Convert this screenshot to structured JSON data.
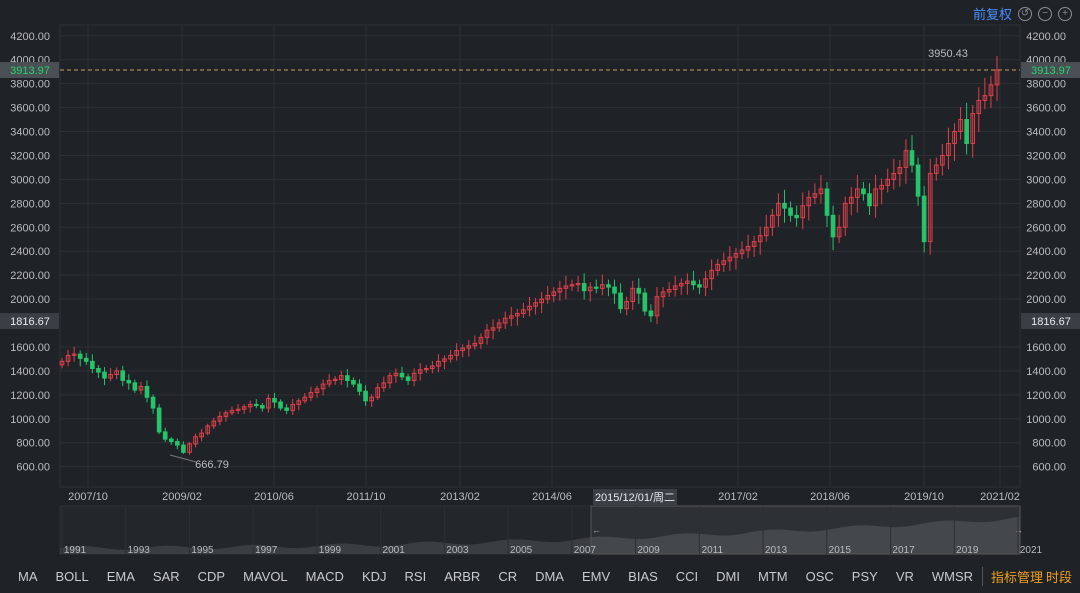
{
  "header": {
    "adjust_label": "前复权",
    "icons": [
      "reset-icon",
      "zoom-out-icon",
      "zoom-in-icon"
    ]
  },
  "colors": {
    "up": "#e0404a",
    "down": "#25c46a",
    "grid": "#2c3035",
    "text": "#b9bcc1",
    "price_line": "#c8a060",
    "tag_bg": "#3a3f45",
    "accent": "#f0a020"
  },
  "price_tag": {
    "current": "3913.97",
    "cursor": "1816.67",
    "cursor_date": "2015/12/01/周二"
  },
  "annotations": {
    "high": "3950.43",
    "low": "666.79"
  },
  "chart_data": {
    "type": "candlestick",
    "y_ticks": [
      "4200.00",
      "4000.00",
      "3800.00",
      "3600.00",
      "3400.00",
      "3200.00",
      "3000.00",
      "2800.00",
      "2600.00",
      "2400.00",
      "2200.00",
      "2000.00",
      "1600.00",
      "1400.00",
      "1200.00",
      "1000.00",
      "800.00",
      "600.00"
    ],
    "ylim": [
      430,
      4290
    ],
    "x_ticks": [
      "2007/10",
      "2009/02",
      "2010/06",
      "2011/10",
      "2013/02",
      "2014/06",
      "2017/02",
      "2018/06",
      "2019/10",
      "2021/02"
    ],
    "closes": [
      1480,
      1530,
      1540,
      1505,
      1480,
      1420,
      1390,
      1340,
      1370,
      1400,
      1320,
      1300,
      1240,
      1270,
      1180,
      1090,
      890,
      830,
      810,
      780,
      720,
      790,
      850,
      880,
      940,
      980,
      1020,
      1050,
      1070,
      1080,
      1100,
      1120,
      1110,
      1090,
      1170,
      1140,
      1090,
      1070,
      1120,
      1150,
      1180,
      1220,
      1250,
      1290,
      1320,
      1330,
      1360,
      1320,
      1290,
      1230,
      1150,
      1180,
      1260,
      1300,
      1360,
      1380,
      1350,
      1320,
      1380,
      1410,
      1420,
      1440,
      1480,
      1500,
      1530,
      1570,
      1590,
      1610,
      1630,
      1680,
      1740,
      1760,
      1800,
      1840,
      1860,
      1880,
      1910,
      1940,
      1970,
      2000,
      2030,
      2060,
      2090,
      2110,
      2120,
      2130,
      2070,
      2100,
      2090,
      2120,
      2100,
      2050,
      1920,
      1980,
      2090,
      2050,
      1900,
      1860,
      2020,
      2060,
      2080,
      2110,
      2130,
      2150,
      2120,
      2100,
      2170,
      2240,
      2290,
      2320,
      2350,
      2380,
      2410,
      2440,
      2480,
      2530,
      2600,
      2700,
      2800,
      2760,
      2700,
      2680,
      2780,
      2850,
      2880,
      2920,
      2700,
      2520,
      2600,
      2800,
      2850,
      2920,
      2880,
      2780,
      2920,
      2950,
      3000,
      3050,
      3100,
      3240,
      3120,
      2860,
      2480,
      3050,
      3120,
      3200,
      3300,
      3400,
      3500,
      3300,
      3550,
      3660,
      3700,
      3790,
      3914
    ],
    "high_value": 3950.43,
    "low_value": 666.79
  },
  "navigator": {
    "years": [
      "1991",
      "1993",
      "1995",
      "1997",
      "1999",
      "2001",
      "2003",
      "2005",
      "2007",
      "2009",
      "2011",
      "2013",
      "2015",
      "2017",
      "2019",
      "2021"
    ]
  },
  "bottom": {
    "indicators": [
      "MA",
      "BOLL",
      "EMA",
      "SAR",
      "CDP",
      "MAVOL",
      "MACD",
      "KDJ",
      "RSI",
      "ARBR",
      "CR",
      "DMA",
      "EMV",
      "BIAS",
      "CCI",
      "DMI",
      "MTM",
      "OSC",
      "PSY",
      "VR",
      "WMSR"
    ],
    "manage_label": "指标管理",
    "period_label": "时段"
  }
}
